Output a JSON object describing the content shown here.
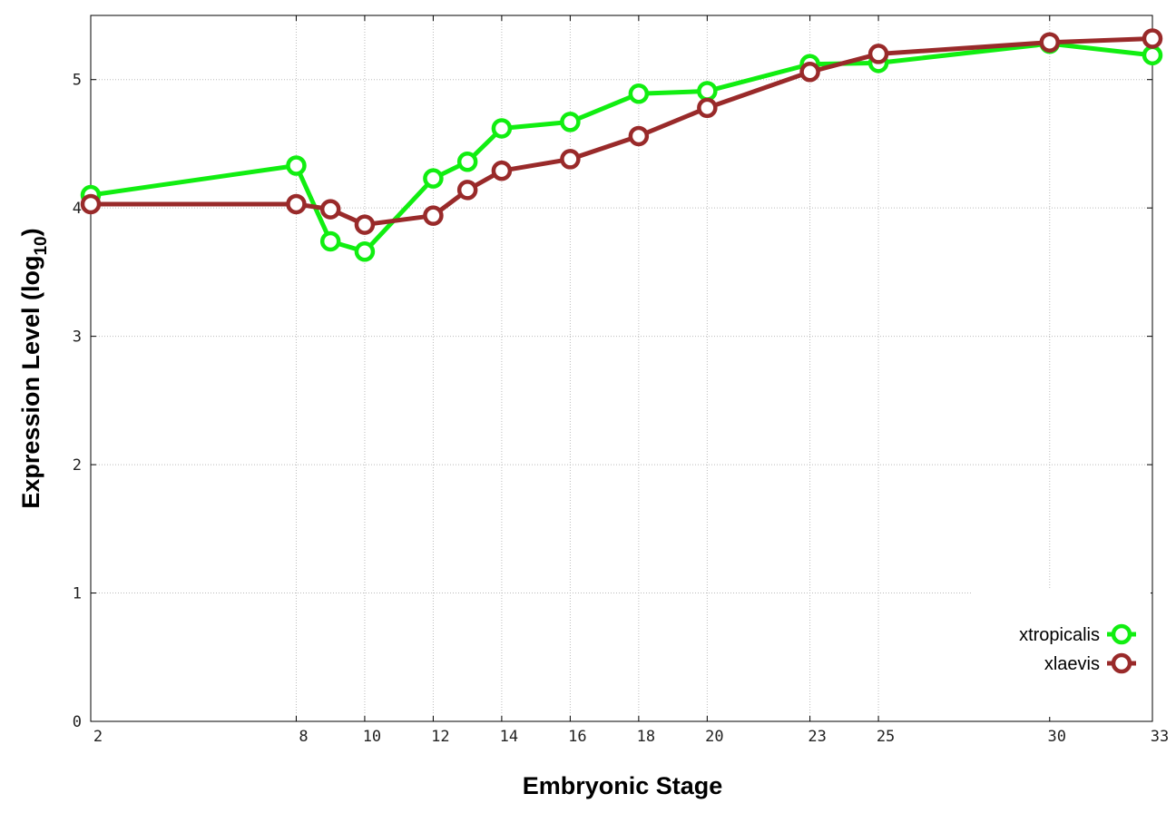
{
  "chart_data": {
    "type": "line",
    "xlabel": "Embryonic Stage",
    "ylabel": "Expression Level (log",
    "ylabel_sub": "10",
    "ylabel_end": ")",
    "xlim": [
      2,
      33
    ],
    "ylim": [
      0,
      5.5
    ],
    "x_ticks": [
      2,
      8,
      10,
      12,
      14,
      16,
      18,
      20,
      23,
      25,
      30,
      33
    ],
    "y_ticks": [
      0,
      1,
      2,
      3,
      4,
      5
    ],
    "grid": true,
    "legend_position": "bottom-right",
    "x": [
      2,
      8,
      9,
      10,
      12,
      13,
      14,
      16,
      18,
      20,
      23,
      25,
      30,
      33
    ],
    "series": [
      {
        "name": "xtropicalis",
        "color": "#11ee11",
        "values": [
          4.1,
          4.33,
          3.74,
          3.66,
          4.23,
          4.36,
          4.62,
          4.67,
          4.89,
          4.91,
          5.12,
          5.13,
          5.28,
          5.19
        ]
      },
      {
        "name": "xlaevis",
        "color": "#992a2a",
        "values": [
          4.03,
          4.03,
          3.99,
          3.87,
          3.94,
          4.14,
          4.29,
          4.38,
          4.56,
          4.78,
          5.06,
          5.2,
          5.29,
          5.32
        ]
      }
    ]
  }
}
